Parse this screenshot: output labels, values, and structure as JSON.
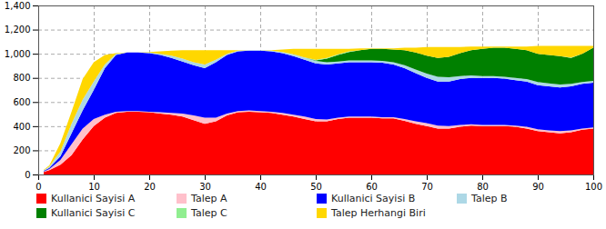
{
  "chart_data": {
    "type": "area",
    "stacked": true,
    "grid": true,
    "x": [
      1,
      2,
      4,
      6,
      8,
      10,
      12,
      14,
      16,
      18,
      20,
      22,
      24,
      26,
      28,
      30,
      32,
      34,
      36,
      38,
      40,
      42,
      44,
      46,
      48,
      50,
      52,
      54,
      56,
      58,
      60,
      62,
      64,
      66,
      68,
      70,
      72,
      74,
      76,
      78,
      80,
      82,
      84,
      86,
      88,
      90,
      92,
      94,
      96,
      98,
      100
    ],
    "xlim": [
      0,
      100
    ],
    "xticks": [
      0,
      10,
      20,
      30,
      40,
      50,
      60,
      70,
      80,
      90,
      100
    ],
    "ylim": [
      0,
      1400
    ],
    "yticks": [
      0,
      200,
      400,
      600,
      800,
      {
        "value": 1000,
        "label": "1,000"
      },
      {
        "value": 1200,
        "label": "1,200"
      },
      {
        "value": 1400,
        "label": "1,400"
      }
    ],
    "series": [
      {
        "name": "Kullanici Sayisi A",
        "color": "#ff0000",
        "values": [
          20,
          35,
          80,
          160,
          290,
          400,
          470,
          510,
          520,
          520,
          515,
          505,
          495,
          480,
          450,
          420,
          440,
          490,
          515,
          520,
          515,
          510,
          495,
          480,
          460,
          440,
          440,
          460,
          470,
          470,
          470,
          465,
          465,
          445,
          420,
          400,
          380,
          380,
          395,
          405,
          400,
          400,
          400,
          395,
          380,
          360,
          350,
          340,
          350,
          370,
          380
        ]
      },
      {
        "name": "Talep A",
        "color": "#ffc0cb",
        "values": [
          5,
          10,
          40,
          90,
          90,
          60,
          25,
          10,
          5,
          5,
          5,
          10,
          15,
          25,
          40,
          50,
          30,
          15,
          10,
          10,
          10,
          10,
          15,
          15,
          20,
          20,
          15,
          10,
          10,
          10,
          10,
          10,
          10,
          15,
          20,
          25,
          25,
          20,
          15,
          10,
          10,
          10,
          10,
          10,
          15,
          15,
          15,
          20,
          15,
          10,
          10
        ]
      },
      {
        "name": "Kullanici Sayisi B",
        "color": "#0000ff",
        "values": [
          5,
          10,
          30,
          90,
          150,
          240,
          385,
          470,
          485,
          485,
          485,
          475,
          455,
          430,
          415,
          410,
          460,
          485,
          495,
          495,
          500,
          500,
          495,
          485,
          470,
          460,
          455,
          450,
          450,
          450,
          450,
          450,
          435,
          420,
          400,
          375,
          365,
          370,
          380,
          385,
          390,
          390,
          385,
          375,
          375,
          365,
          365,
          360,
          365,
          370,
          370
        ]
      },
      {
        "name": "Talep B",
        "color": "#add8e6",
        "values": [
          5,
          10,
          40,
          80,
          90,
          70,
          30,
          10,
          0,
          0,
          5,
          10,
          20,
          25,
          25,
          30,
          20,
          10,
          5,
          5,
          5,
          5,
          10,
          15,
          20,
          20,
          20,
          15,
          15,
          15,
          15,
          15,
          20,
          25,
          30,
          35,
          40,
          35,
          25,
          20,
          15,
          15,
          15,
          20,
          20,
          25,
          25,
          25,
          20,
          15,
          15
        ]
      },
      {
        "name": "Kullanici Sayisi C",
        "color": "#008000",
        "values": [
          0,
          0,
          0,
          0,
          0,
          0,
          0,
          0,
          0,
          0,
          0,
          0,
          0,
          0,
          0,
          0,
          0,
          0,
          0,
          0,
          0,
          0,
          0,
          0,
          0,
          5,
          30,
          55,
          70,
          85,
          95,
          100,
          105,
          125,
          140,
          150,
          155,
          170,
          190,
          210,
          225,
          235,
          240,
          240,
          240,
          235,
          235,
          235,
          215,
          235,
          275
        ]
      },
      {
        "name": "Talep C",
        "color": "#90ee90",
        "values": [
          0,
          0,
          0,
          0,
          0,
          0,
          0,
          0,
          0,
          0,
          0,
          0,
          0,
          0,
          0,
          0,
          0,
          0,
          0,
          0,
          0,
          0,
          0,
          0,
          0,
          5,
          5,
          5,
          5,
          0,
          0,
          0,
          0,
          0,
          0,
          0,
          0,
          0,
          0,
          0,
          0,
          0,
          0,
          0,
          0,
          0,
          0,
          0,
          5,
          0,
          0
        ]
      },
      {
        "name": "Talep Herhangi Biri",
        "color": "#ffd700",
        "values": [
          5,
          10,
          70,
          100,
          170,
          160,
          80,
          5,
          0,
          0,
          5,
          20,
          40,
          70,
          100,
          120,
          80,
          30,
          5,
          0,
          0,
          5,
          20,
          45,
          70,
          90,
          75,
          45,
          20,
          15,
          5,
          5,
          10,
          20,
          40,
          70,
          90,
          80,
          50,
          30,
          20,
          10,
          10,
          20,
          30,
          65,
          75,
          85,
          95,
          65,
          15
        ]
      }
    ]
  }
}
